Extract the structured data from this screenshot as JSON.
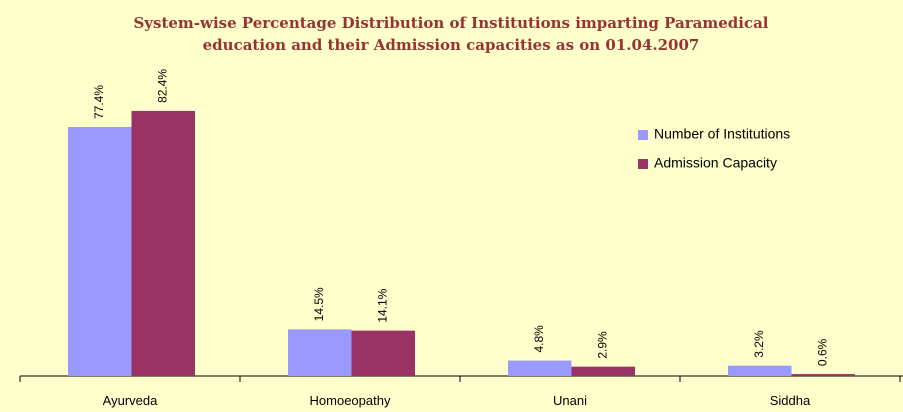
{
  "chart_data": {
    "type": "bar",
    "title": [
      "System-wise Percentage Distribution of Institutions imparting Paramedical",
      "education and their Admission capacities as on 01.04.2007"
    ],
    "categories": [
      "Ayurveda",
      "Homoeopathy",
      "Unani",
      "Siddha"
    ],
    "series": [
      {
        "name": "Number of Institutions",
        "color": "#9999ff",
        "values": [
          77.4,
          14.5,
          4.8,
          3.2
        ],
        "value_labels": [
          "77.4%",
          "14.5%",
          "4.8%",
          "3.2%"
        ]
      },
      {
        "name": "Admission Capacity",
        "color": "#993366",
        "values": [
          82.4,
          14.1,
          2.9,
          0.6
        ],
        "value_labels": [
          "82.4%",
          "14.1%",
          "2.9%",
          "0.6%"
        ]
      }
    ],
    "legend": "upper right"
  }
}
